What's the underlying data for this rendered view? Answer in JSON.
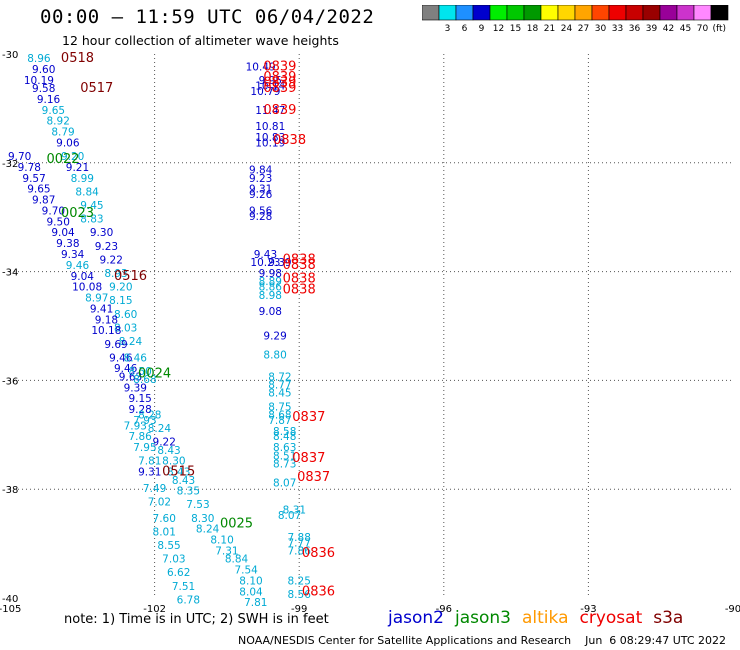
{
  "title": "00:00 – 11:59 UTC 06/04/2022",
  "subtitle": "12 hour collection of altimeter wave heights",
  "colorbar": {
    "unit_label": "(ft)",
    "colors": [
      "#808080",
      "#00e5ee",
      "#1e90ff",
      "#0000cd",
      "#00ee00",
      "#00c800",
      "#009900",
      "#ffff00",
      "#ffd700",
      "#ffa500",
      "#ff4500",
      "#ee0000",
      "#c80000",
      "#990000",
      "#990099",
      "#cc33cc",
      "#ff88ff",
      "#000000"
    ],
    "labels": [
      "3",
      "6",
      "9",
      "12",
      "15",
      "18",
      "21",
      "24",
      "27",
      "30",
      "33",
      "36",
      "39",
      "42",
      "45",
      "70"
    ]
  },
  "map": {
    "lon_range": [
      -105,
      -90
    ],
    "lat_range": [
      -40,
      -30
    ],
    "lon_ticks": [
      {
        "value": -105,
        "label": "-105"
      },
      {
        "value": -102,
        "label": "-102"
      },
      {
        "value": -99,
        "label": "-99"
      },
      {
        "value": -96,
        "label": "-96"
      },
      {
        "value": -93,
        "label": "-93"
      },
      {
        "value": -90,
        "label": "-90"
      }
    ],
    "lat_ticks": [
      {
        "value": -30,
        "label": "-30"
      },
      {
        "value": -32,
        "label": "-32"
      },
      {
        "value": -34,
        "label": "-34"
      },
      {
        "value": -36,
        "label": "-36"
      },
      {
        "value": -38,
        "label": "-38"
      },
      {
        "value": -40,
        "label": "-40"
      }
    ]
  },
  "colors": {
    "c": "#00aad4",
    "b": "#0000cc",
    "g": "#008800",
    "r": "#ee0000",
    "m": "#800000"
  },
  "observations": [
    {
      "lon": -104.4,
      "lat": -30.15,
      "t": "8.96",
      "c": "c"
    },
    {
      "lon": -104.3,
      "lat": -30.35,
      "t": "9.60",
      "c": "b"
    },
    {
      "lon": -104.4,
      "lat": -30.55,
      "t": "10.19",
      "c": "b"
    },
    {
      "lon": -104.3,
      "lat": -30.7,
      "t": "9.58",
      "c": "b"
    },
    {
      "lon": -104.2,
      "lat": -30.9,
      "t": "9.16",
      "c": "b"
    },
    {
      "lon": -104.1,
      "lat": -31.1,
      "t": "9.65",
      "c": "c"
    },
    {
      "lon": -104.0,
      "lat": -31.3,
      "t": "8.92",
      "c": "c"
    },
    {
      "lon": -103.9,
      "lat": -31.5,
      "t": "8.79",
      "c": "c"
    },
    {
      "lon": -103.8,
      "lat": -31.7,
      "t": "9.06",
      "c": "b"
    },
    {
      "lon": -104.8,
      "lat": -31.95,
      "t": "9.70",
      "c": "b"
    },
    {
      "lon": -103.7,
      "lat": -31.95,
      "t": "9.20",
      "c": "c"
    },
    {
      "lon": -104.6,
      "lat": -32.15,
      "t": "9.78",
      "c": "b"
    },
    {
      "lon": -103.6,
      "lat": -32.15,
      "t": "9.21",
      "c": "b"
    },
    {
      "lon": -104.5,
      "lat": -32.35,
      "t": "9.57",
      "c": "b"
    },
    {
      "lon": -103.5,
      "lat": -32.35,
      "t": "8.99",
      "c": "c"
    },
    {
      "lon": -104.4,
      "lat": -32.55,
      "t": "9.65",
      "c": "b"
    },
    {
      "lon": -103.4,
      "lat": -32.6,
      "t": "8.84",
      "c": "c"
    },
    {
      "lon": -104.3,
      "lat": -32.75,
      "t": "9.87",
      "c": "b"
    },
    {
      "lon": -103.3,
      "lat": -32.85,
      "t": "9.45",
      "c": "c"
    },
    {
      "lon": -104.1,
      "lat": -32.95,
      "t": "9.70",
      "c": "b"
    },
    {
      "lon": -103.3,
      "lat": -33.1,
      "t": "8.83",
      "c": "c"
    },
    {
      "lon": -104.0,
      "lat": -33.15,
      "t": "9.50",
      "c": "b"
    },
    {
      "lon": -103.9,
      "lat": -33.35,
      "t": "9.04",
      "c": "b"
    },
    {
      "lon": -103.1,
      "lat": -33.35,
      "t": "9.30",
      "c": "b"
    },
    {
      "lon": -103.8,
      "lat": -33.55,
      "t": "9.38",
      "c": "b"
    },
    {
      "lon": -103.0,
      "lat": -33.6,
      "t": "9.23",
      "c": "b"
    },
    {
      "lon": -103.7,
      "lat": -33.75,
      "t": "9.34",
      "c": "b"
    },
    {
      "lon": -102.9,
      "lat": -33.85,
      "t": "9.22",
      "c": "b"
    },
    {
      "lon": -103.6,
      "lat": -33.95,
      "t": "9.46",
      "c": "c"
    },
    {
      "lon": -102.8,
      "lat": -34.1,
      "t": "8.93",
      "c": "c"
    },
    {
      "lon": -103.5,
      "lat": -34.15,
      "t": "9.04",
      "c": "b"
    },
    {
      "lon": -102.7,
      "lat": -34.35,
      "t": "9.20",
      "c": "c"
    },
    {
      "lon": -103.4,
      "lat": -34.35,
      "t": "10.08",
      "c": "b"
    },
    {
      "lon": -103.2,
      "lat": -34.55,
      "t": "8.97",
      "c": "c"
    },
    {
      "lon": -102.7,
      "lat": -34.6,
      "t": "8.15",
      "c": "c"
    },
    {
      "lon": -103.1,
      "lat": -34.75,
      "t": "9.41",
      "c": "b"
    },
    {
      "lon": -102.6,
      "lat": -34.85,
      "t": "8.60",
      "c": "c"
    },
    {
      "lon": -103.0,
      "lat": -34.95,
      "t": "9.18",
      "c": "b"
    },
    {
      "lon": -102.6,
      "lat": -35.1,
      "t": "8.03",
      "c": "c"
    },
    {
      "lon": -103.0,
      "lat": -35.15,
      "t": "10.18",
      "c": "b"
    },
    {
      "lon": -102.5,
      "lat": -35.35,
      "t": "8.24",
      "c": "c"
    },
    {
      "lon": -102.8,
      "lat": -35.4,
      "t": "9.69",
      "c": "b"
    },
    {
      "lon": -102.7,
      "lat": -35.65,
      "t": "9.46",
      "c": "b"
    },
    {
      "lon": -102.4,
      "lat": -35.65,
      "t": "8.46",
      "c": "c"
    },
    {
      "lon": -102.6,
      "lat": -35.85,
      "t": "9.46",
      "c": "b"
    },
    {
      "lon": -102.3,
      "lat": -35.9,
      "t": "8.50",
      "c": "c"
    },
    {
      "lon": -102.5,
      "lat": -36.0,
      "t": "9.63",
      "c": "b"
    },
    {
      "lon": -102.2,
      "lat": -36.05,
      "t": "8.68",
      "c": "c"
    },
    {
      "lon": -102.4,
      "lat": -36.2,
      "t": "9.39",
      "c": "b"
    },
    {
      "lon": -102.3,
      "lat": -36.4,
      "t": "9.15",
      "c": "b"
    },
    {
      "lon": -102.3,
      "lat": -36.6,
      "t": "9.28",
      "c": "b"
    },
    {
      "lon": -102.1,
      "lat": -36.7,
      "t": "8.28",
      "c": "c"
    },
    {
      "lon": -102.2,
      "lat": -36.8,
      "t": "7.93",
      "c": "c"
    },
    {
      "lon": -102.4,
      "lat": -36.9,
      "t": "7.93",
      "c": "c"
    },
    {
      "lon": -101.9,
      "lat": -36.95,
      "t": "8.24",
      "c": "c"
    },
    {
      "lon": -102.3,
      "lat": -37.1,
      "t": "7.86",
      "c": "c"
    },
    {
      "lon": -101.8,
      "lat": -37.2,
      "t": "9.22",
      "c": "b"
    },
    {
      "lon": -102.2,
      "lat": -37.3,
      "t": "7.95",
      "c": "c"
    },
    {
      "lon": -101.7,
      "lat": -37.35,
      "t": "8.43",
      "c": "c"
    },
    {
      "lon": -102.1,
      "lat": -37.55,
      "t": "7.81",
      "c": "c"
    },
    {
      "lon": -101.6,
      "lat": -37.55,
      "t": "8.30",
      "c": "c"
    },
    {
      "lon": -102.1,
      "lat": -37.75,
      "t": "9.31",
      "c": "b"
    },
    {
      "lon": -101.5,
      "lat": -37.75,
      "t": "8.43",
      "c": "c"
    },
    {
      "lon": -101.4,
      "lat": -37.9,
      "t": "8.43",
      "c": "c"
    },
    {
      "lon": -102.0,
      "lat": -38.05,
      "t": "7.49",
      "c": "c"
    },
    {
      "lon": -101.3,
      "lat": -38.1,
      "t": "8.35",
      "c": "c"
    },
    {
      "lon": -101.9,
      "lat": -38.3,
      "t": "7.02",
      "c": "c"
    },
    {
      "lon": -101.1,
      "lat": -38.35,
      "t": "7.53",
      "c": "c"
    },
    {
      "lon": -101.8,
      "lat": -38.6,
      "t": "7.60",
      "c": "c"
    },
    {
      "lon": -101.0,
      "lat": -38.6,
      "t": "8.30",
      "c": "c"
    },
    {
      "lon": -101.8,
      "lat": -38.85,
      "t": "8.01",
      "c": "c"
    },
    {
      "lon": -100.9,
      "lat": -38.8,
      "t": "8.24",
      "c": "c"
    },
    {
      "lon": -100.6,
      "lat": -39.0,
      "t": "8.10",
      "c": "c"
    },
    {
      "lon": -101.7,
      "lat": -39.1,
      "t": "8.55",
      "c": "c"
    },
    {
      "lon": -100.5,
      "lat": -39.2,
      "t": "7.31",
      "c": "c"
    },
    {
      "lon": -101.6,
      "lat": -39.35,
      "t": "7.03",
      "c": "c"
    },
    {
      "lon": -100.3,
      "lat": -39.35,
      "t": "8.84",
      "c": "c"
    },
    {
      "lon": -101.5,
      "lat": -39.6,
      "t": "6.62",
      "c": "c"
    },
    {
      "lon": -100.1,
      "lat": -39.55,
      "t": "7.54",
      "c": "c"
    },
    {
      "lon": -100.0,
      "lat": -39.75,
      "t": "8.10",
      "c": "c"
    },
    {
      "lon": -101.4,
      "lat": -39.85,
      "t": "7.51",
      "c": "c"
    },
    {
      "lon": -100.0,
      "lat": -39.95,
      "t": "8.04",
      "c": "c"
    },
    {
      "lon": -101.3,
      "lat": -40.1,
      "t": "6.78",
      "c": "c"
    },
    {
      "lon": -99.9,
      "lat": -40.15,
      "t": "7.81",
      "c": "c"
    },
    {
      "lon": -99.8,
      "lat": -30.3,
      "t": "10.49",
      "c": "b"
    },
    {
      "lon": -99.6,
      "lat": -30.55,
      "t": "9.95",
      "c": "b"
    },
    {
      "lon": -99.6,
      "lat": -30.65,
      "t": "10.14",
      "c": "b"
    },
    {
      "lon": -99.7,
      "lat": -30.75,
      "t": "10.79",
      "c": "b"
    },
    {
      "lon": -99.6,
      "lat": -31.1,
      "t": "11.47",
      "c": "b"
    },
    {
      "lon": -99.6,
      "lat": -31.4,
      "t": "10.81",
      "c": "b"
    },
    {
      "lon": -99.6,
      "lat": -31.6,
      "t": "10.83",
      "c": "b"
    },
    {
      "lon": -99.6,
      "lat": -31.7,
      "t": "10.19",
      "c": "b"
    },
    {
      "lon": -99.8,
      "lat": -32.2,
      "t": "9.84",
      "c": "b"
    },
    {
      "lon": -99.8,
      "lat": -32.35,
      "t": "9.23",
      "c": "b"
    },
    {
      "lon": -99.8,
      "lat": -32.55,
      "t": "9.31",
      "c": "b"
    },
    {
      "lon": -99.8,
      "lat": -32.65,
      "t": "9.26",
      "c": "b"
    },
    {
      "lon": -99.8,
      "lat": -32.95,
      "t": "9.56",
      "c": "b"
    },
    {
      "lon": -99.8,
      "lat": -33.05,
      "t": "9.28",
      "c": "b"
    },
    {
      "lon": -99.7,
      "lat": -33.75,
      "t": "9.43",
      "c": "b"
    },
    {
      "lon": -99.7,
      "lat": -33.9,
      "t": "10.23",
      "c": "b"
    },
    {
      "lon": -99.4,
      "lat": -33.9,
      "t": "9.39",
      "c": "b"
    },
    {
      "lon": -99.6,
      "lat": -34.1,
      "t": "9.98",
      "c": "b"
    },
    {
      "lon": -99.6,
      "lat": -34.25,
      "t": "8.89",
      "c": "c"
    },
    {
      "lon": -99.6,
      "lat": -34.35,
      "t": "8.86",
      "c": "c"
    },
    {
      "lon": -99.6,
      "lat": -34.5,
      "t": "8.98",
      "c": "c"
    },
    {
      "lon": -99.6,
      "lat": -34.8,
      "t": "9.08",
      "c": "b"
    },
    {
      "lon": -99.5,
      "lat": -35.25,
      "t": "9.29",
      "c": "b"
    },
    {
      "lon": -99.5,
      "lat": -35.6,
      "t": "8.80",
      "c": "c"
    },
    {
      "lon": -99.4,
      "lat": -36.0,
      "t": "8.72",
      "c": "c"
    },
    {
      "lon": -99.4,
      "lat": -36.15,
      "t": "8.77",
      "c": "c"
    },
    {
      "lon": -99.4,
      "lat": -36.3,
      "t": "8.45",
      "c": "c"
    },
    {
      "lon": -99.4,
      "lat": -36.55,
      "t": "8.75",
      "c": "c"
    },
    {
      "lon": -99.4,
      "lat": -36.7,
      "t": "8.68",
      "c": "c"
    },
    {
      "lon": -99.4,
      "lat": -36.8,
      "t": "7.87",
      "c": "c"
    },
    {
      "lon": -99.3,
      "lat": -37.0,
      "t": "8.58",
      "c": "c"
    },
    {
      "lon": -99.3,
      "lat": -37.1,
      "t": "8.48",
      "c": "c"
    },
    {
      "lon": -99.3,
      "lat": -37.3,
      "t": "8.63",
      "c": "c"
    },
    {
      "lon": -99.3,
      "lat": -37.45,
      "t": "8.51",
      "c": "c"
    },
    {
      "lon": -99.3,
      "lat": -37.6,
      "t": "8.73",
      "c": "c"
    },
    {
      "lon": -99.3,
      "lat": -37.95,
      "t": "8.07",
      "c": "c"
    },
    {
      "lon": -99.1,
      "lat": -38.45,
      "t": "8.31",
      "c": "c"
    },
    {
      "lon": -99.2,
      "lat": -38.55,
      "t": "8.07",
      "c": "c"
    },
    {
      "lon": -99.0,
      "lat": -38.95,
      "t": "7.88",
      "c": "c"
    },
    {
      "lon": -99.0,
      "lat": -39.05,
      "t": "7.77",
      "c": "c"
    },
    {
      "lon": -99.0,
      "lat": -39.2,
      "t": "7.86",
      "c": "c"
    },
    {
      "lon": -99.0,
      "lat": -39.75,
      "t": "8.25",
      "c": "c"
    },
    {
      "lon": -99.0,
      "lat": -40.0,
      "t": "8.56",
      "c": "c"
    }
  ],
  "time_labels": [
    {
      "lon": -103.6,
      "lat": -30.15,
      "t": "0518",
      "c": "m"
    },
    {
      "lon": -103.2,
      "lat": -30.7,
      "t": "0517",
      "c": "m"
    },
    {
      "lon": -103.9,
      "lat": -32.0,
      "t": "0022",
      "c": "g"
    },
    {
      "lon": -103.6,
      "lat": -33.0,
      "t": "0023",
      "c": "g"
    },
    {
      "lon": -102.5,
      "lat": -34.15,
      "t": "0516",
      "c": "m"
    },
    {
      "lon": -102.0,
      "lat": -35.95,
      "t": "0024",
      "c": "g"
    },
    {
      "lon": -101.5,
      "lat": -37.75,
      "t": "0515",
      "c": "m"
    },
    {
      "lon": -100.3,
      "lat": -38.7,
      "t": "0025",
      "c": "g"
    },
    {
      "lon": -99.4,
      "lat": -30.3,
      "t": "0839",
      "c": "r"
    },
    {
      "lon": -99.4,
      "lat": -30.5,
      "t": "0839",
      "c": "r"
    },
    {
      "lon": -99.4,
      "lat": -30.6,
      "t": "0839",
      "c": "r"
    },
    {
      "lon": -99.4,
      "lat": -30.7,
      "t": "0839",
      "c": "r"
    },
    {
      "lon": -99.4,
      "lat": -31.1,
      "t": "0839",
      "c": "r"
    },
    {
      "lon": -99.2,
      "lat": -31.65,
      "t": "0838",
      "c": "r"
    },
    {
      "lon": -99.0,
      "lat": -33.85,
      "t": "0838",
      "c": "r"
    },
    {
      "lon": -99.0,
      "lat": -33.95,
      "t": "0838",
      "c": "r"
    },
    {
      "lon": -99.0,
      "lat": -34.2,
      "t": "0838",
      "c": "r"
    },
    {
      "lon": -99.0,
      "lat": -34.4,
      "t": "0838",
      "c": "r"
    },
    {
      "lon": -98.8,
      "lat": -36.75,
      "t": "0837",
      "c": "r"
    },
    {
      "lon": -98.8,
      "lat": -37.5,
      "t": "0837",
      "c": "r"
    },
    {
      "lon": -98.7,
      "lat": -37.85,
      "t": "0837",
      "c": "r"
    },
    {
      "lon": -98.6,
      "lat": -39.25,
      "t": "0836",
      "c": "r"
    },
    {
      "lon": -98.6,
      "lat": -39.95,
      "t": "0836",
      "c": "r"
    }
  ],
  "note": "note: 1) Time is in UTC; 2) SWH is in feet",
  "legend": [
    {
      "label": "jason2",
      "color": "#0000cc"
    },
    {
      "label": "jason3",
      "color": "#008800"
    },
    {
      "label": "altika",
      "color": "#ff9900"
    },
    {
      "label": "cryosat",
      "color": "#ee0000"
    },
    {
      "label": "s3a",
      "color": "#800000"
    }
  ],
  "credit": "NOAA/NESDIS Center for Satellite Applications and Research    Jun  6 08:29:47 UTC 2022"
}
